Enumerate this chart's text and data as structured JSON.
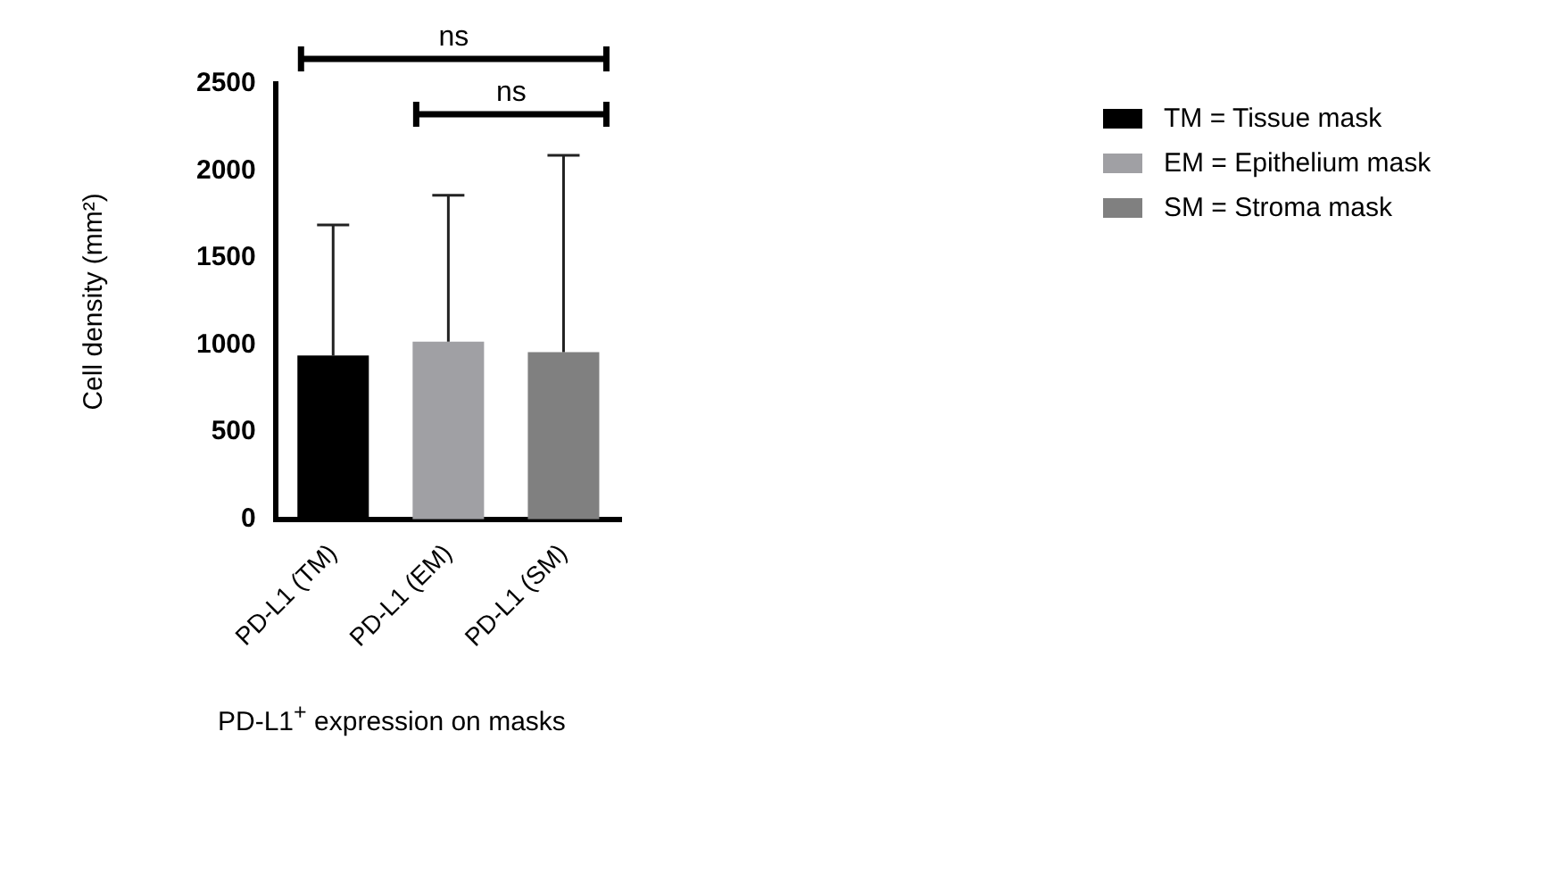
{
  "chart_data": {
    "type": "bar",
    "xlabel": "PD-L1$^{+}$ expression on masks",
    "ylabel": "Cell density (mm²)",
    "categories": [
      "PD-L1 (TM)",
      "PD-L1 (EM)",
      "PD-L1 (SM)"
    ],
    "series": [
      {
        "name": "TM = Tissue mask",
        "color": "#000000",
        "values": [
          940,
          null,
          null
        ],
        "errors": [
          [
            940,
            1690
          ],
          null,
          null
        ]
      },
      {
        "name": "EM = Epithelium mask",
        "color": "#a0a0a4",
        "values": [
          null,
          1020,
          null
        ],
        "errors": [
          null,
          [
            1020,
            1860
          ],
          null
        ]
      },
      {
        "name": "SM = Stroma mask",
        "color": "#808080",
        "values": [
          null,
          null,
          960
        ],
        "errors": [
          null,
          null,
          [
            960,
            2090
          ]
        ]
      }
    ],
    "ylim": [
      0,
      2500
    ],
    "yticks": [
      0,
      500,
      1000,
      1500,
      2000,
      2500
    ],
    "grid": false,
    "legend": "right",
    "annotations": [
      "ns",
      "ns"
    ]
  }
}
